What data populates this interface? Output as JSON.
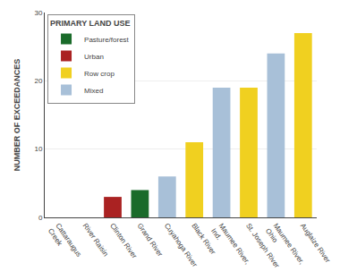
{
  "chart_data": {
    "type": "bar",
    "categories": [
      "Cattaraugus\nCreek",
      "River Raisin",
      "Clinton River",
      "Grand River",
      "Cuyahoga River",
      "Black River",
      "Maumee River,\nInd.",
      "St. Joseph River",
      "Maumee River,\nOhio",
      "Auglaize River"
    ],
    "series": [
      {
        "name": "Pasture/forest",
        "color": "#1a6b2a",
        "values": [
          null,
          null,
          null,
          4,
          null,
          null,
          null,
          null,
          null,
          null
        ]
      },
      {
        "name": "Urban",
        "color": "#aa2222",
        "values": [
          null,
          null,
          3,
          null,
          null,
          null,
          null,
          null,
          null,
          null
        ]
      },
      {
        "name": "Row crop",
        "color": "#f0d020",
        "values": [
          null,
          null,
          null,
          null,
          null,
          11,
          null,
          19,
          null,
          27
        ]
      },
      {
        "name": "Mixed",
        "color": "#a8c0d8",
        "values": [
          0,
          0,
          null,
          null,
          6,
          null,
          19,
          null,
          24,
          null
        ]
      }
    ],
    "ylabel": "NUMBER OF EXCEEDANCES",
    "legend_title": "PRIMARY LAND USE",
    "legend": "upper left",
    "ylim": [
      0,
      30
    ],
    "yticks": [
      0,
      10,
      20,
      30
    ],
    "grid": true
  }
}
